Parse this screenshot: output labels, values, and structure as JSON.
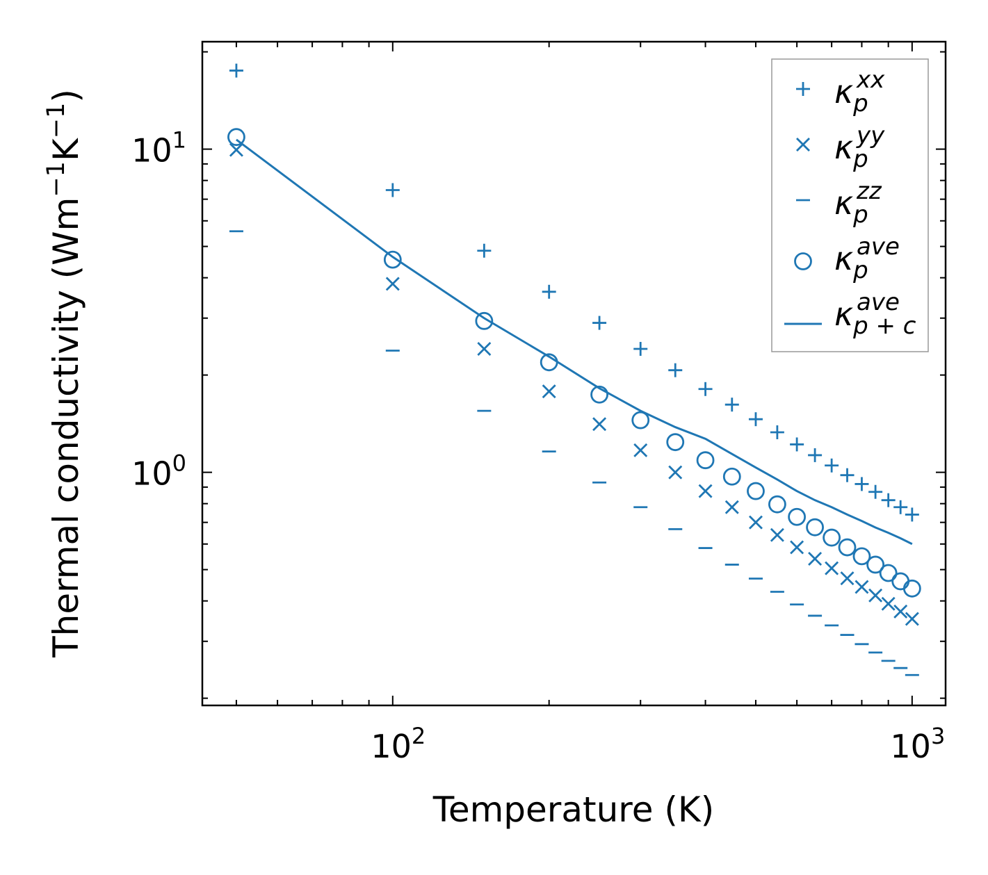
{
  "chart_data": {
    "type": "scatter",
    "xscale": "log",
    "yscale": "log",
    "xlabel": "Temperature (K)",
    "ylabel": {
      "main": "Thermal conductivity (Wm",
      "sup1": "−1",
      "mid": "K",
      "sup2": "−1",
      "end": ")"
    },
    "xlim": [
      43,
      1160
    ],
    "ylim": [
      0.19,
      21.5
    ],
    "xticks": [
      {
        "value": 100,
        "base": "10",
        "exp": "2"
      },
      {
        "value": 1000,
        "base": "10",
        "exp": "3"
      }
    ],
    "yticks": [
      {
        "value": 1,
        "base": "10",
        "exp": "0"
      },
      {
        "value": 10,
        "base": "10",
        "exp": "1"
      }
    ],
    "grid": false,
    "legend_position": "top-right",
    "color": "#1f77b4",
    "x": [
      50,
      100,
      150,
      200,
      250,
      300,
      350,
      400,
      450,
      500,
      550,
      600,
      650,
      700,
      750,
      800,
      850,
      900,
      950,
      1000
    ],
    "series": [
      {
        "name": "kappa_p_xx",
        "label": {
          "base": "κ",
          "sub": "p",
          "sup": "xx"
        },
        "marker": "plus",
        "values": [
          17.5,
          7.47,
          4.85,
          3.62,
          2.9,
          2.41,
          2.07,
          1.81,
          1.62,
          1.46,
          1.33,
          1.22,
          1.13,
          1.05,
          0.98,
          0.92,
          0.87,
          0.82,
          0.78,
          0.74
        ]
      },
      {
        "name": "kappa_p_yy",
        "label": {
          "base": "κ",
          "sub": "p",
          "sup": "yy"
        },
        "marker": "x",
        "values": [
          9.95,
          3.83,
          2.41,
          1.78,
          1.41,
          1.17,
          1.0,
          0.875,
          0.78,
          0.7,
          0.64,
          0.586,
          0.54,
          0.505,
          0.47,
          0.442,
          0.416,
          0.392,
          0.371,
          0.352
        ]
      },
      {
        "name": "kappa_p_zz",
        "label": {
          "base": "κ",
          "sub": "p",
          "sup": "zz"
        },
        "marker": "minus",
        "values": [
          5.57,
          2.38,
          1.55,
          1.16,
          0.93,
          0.78,
          0.667,
          0.583,
          0.518,
          0.469,
          0.427,
          0.39,
          0.36,
          0.336,
          0.314,
          0.294,
          0.277,
          0.261,
          0.248,
          0.236
        ]
      },
      {
        "name": "kappa_p_ave",
        "label": {
          "base": "κ",
          "sub": "p",
          "sup": "ave"
        },
        "marker": "circle",
        "values": [
          10.9,
          4.55,
          2.94,
          2.19,
          1.74,
          1.45,
          1.24,
          1.09,
          0.97,
          0.875,
          0.796,
          0.728,
          0.676,
          0.628,
          0.586,
          0.55,
          0.518,
          0.488,
          0.46,
          0.437
        ]
      },
      {
        "name": "kappa_pc_ave",
        "label": {
          "base": "κ",
          "sub": "p + c",
          "sup": "ave"
        },
        "marker": "line",
        "values": [
          10.7,
          4.64,
          3.0,
          2.28,
          1.82,
          1.55,
          1.38,
          1.27,
          1.14,
          1.035,
          0.95,
          0.875,
          0.82,
          0.78,
          0.74,
          0.707,
          0.675,
          0.65,
          0.625,
          0.6
        ]
      }
    ]
  }
}
